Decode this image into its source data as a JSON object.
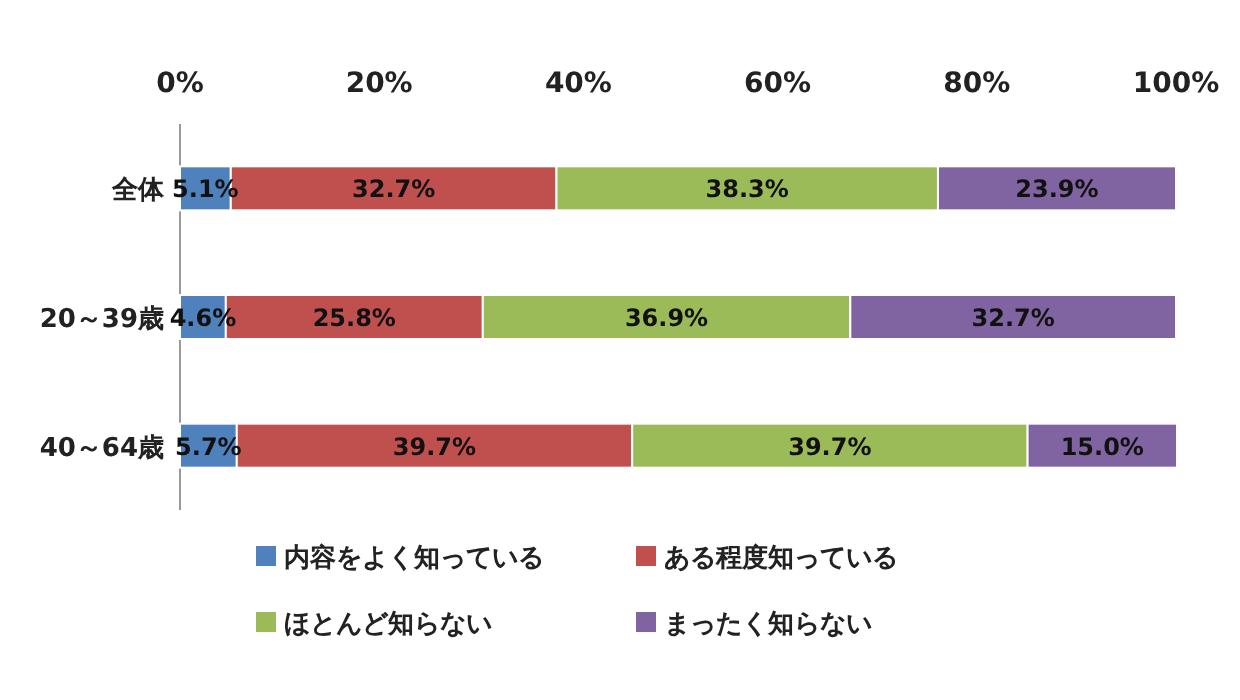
{
  "chart_data": {
    "type": "bar",
    "orientation": "horizontal",
    "stacked": true,
    "legend": "bottom",
    "categories": [
      "全体",
      "20～39歳",
      "40～64歳"
    ],
    "xlim": [
      0,
      100
    ],
    "xticks": [
      {
        "value": 0,
        "label": "0%"
      },
      {
        "value": 20,
        "label": "20%"
      },
      {
        "value": 40,
        "label": "40%"
      },
      {
        "value": 60,
        "label": "60%"
      },
      {
        "value": 80,
        "label": "80%"
      },
      {
        "value": 100,
        "label": "100%"
      }
    ],
    "series": [
      {
        "name": "内容をよく知っている",
        "color": "#4f81bd",
        "values": [
          5.1,
          4.6,
          5.7
        ],
        "value_labels": [
          "5.1%",
          "4.6%",
          "5.7%"
        ]
      },
      {
        "name": "ある程度知っている",
        "color": "#c0504d",
        "values": [
          32.7,
          25.8,
          39.7
        ],
        "value_labels": [
          "32.7%",
          "25.8%",
          "39.7%"
        ]
      },
      {
        "name": "ほとんど知らない",
        "color": "#9bbb59",
        "values": [
          38.3,
          36.9,
          39.7
        ],
        "value_labels": [
          "38.3%",
          "36.9%",
          "39.7%"
        ]
      },
      {
        "name": "まったく知らない",
        "color": "#8064a2",
        "values": [
          23.9,
          32.7,
          15.0
        ],
        "value_labels": [
          "23.9%",
          "32.7%",
          "15.0%"
        ]
      }
    ]
  }
}
